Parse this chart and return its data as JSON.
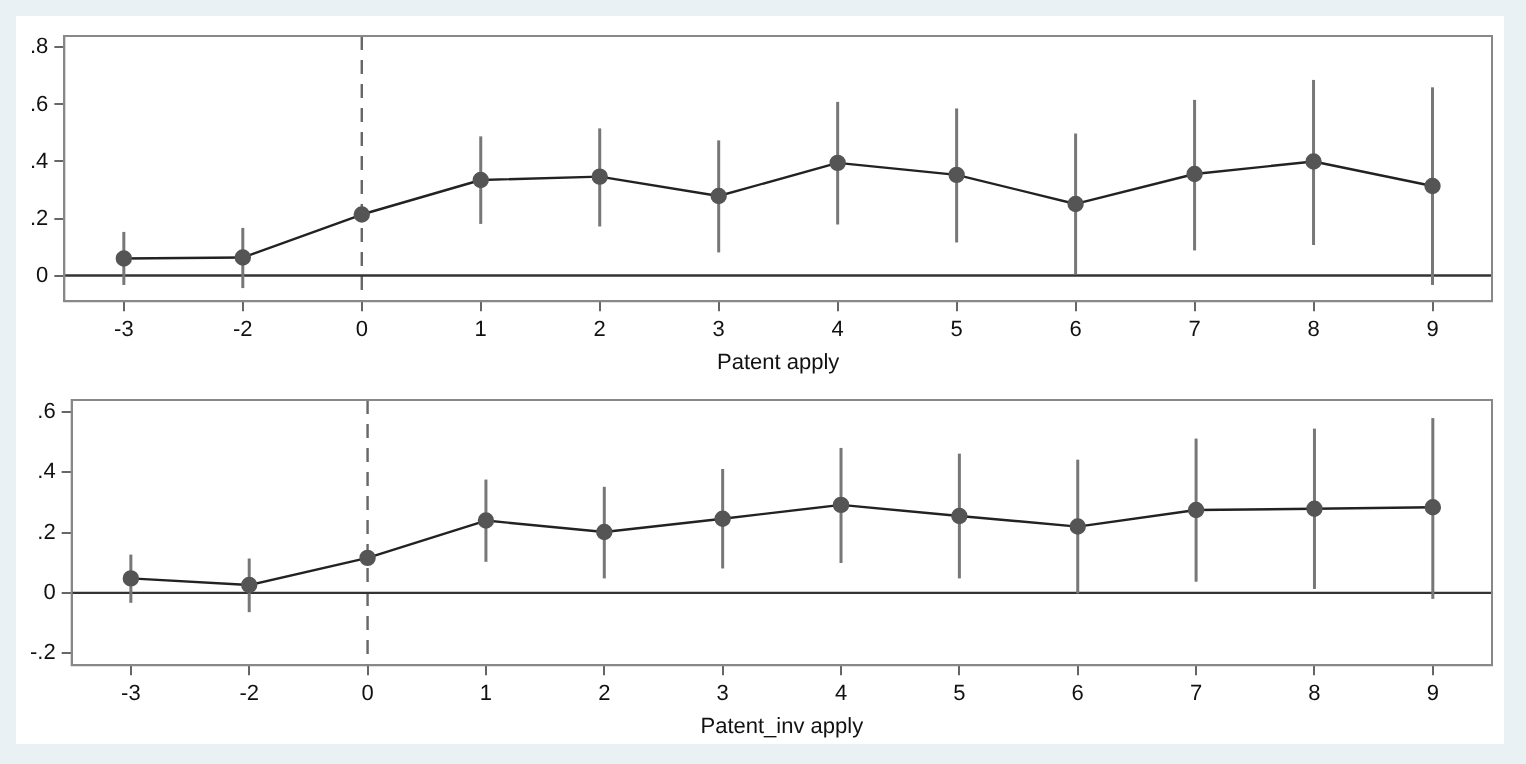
{
  "chart_data": [
    {
      "type": "line",
      "xlabel": "Patent apply",
      "categories": [
        "-3",
        "-2",
        "0",
        "1",
        "2",
        "3",
        "4",
        "5",
        "6",
        "7",
        "8",
        "9"
      ],
      "series": [
        {
          "color": "#555555",
          "values": [
            0.06,
            0.063,
            0.214,
            0.335,
            0.347,
            0.279,
            0.395,
            0.353,
            0.251,
            0.356,
            0.4,
            0.314
          ],
          "errors": [
            [
              -0.033,
              0.153
            ],
            [
              -0.044,
              0.167
            ],
            null,
            [
              0.181,
              0.488
            ],
            [
              0.172,
              0.516
            ],
            [
              0.081,
              0.474
            ],
            [
              0.179,
              0.609
            ],
            [
              0.116,
              0.586
            ],
            [
              0.005,
              0.498
            ],
            [
              0.088,
              0.616
            ],
            [
              0.107,
              0.686
            ],
            [
              -0.033,
              0.66
            ]
          ]
        }
      ],
      "ylim": [
        -0.09,
        0.84
      ],
      "yticks": [
        {
          "value": 0,
          "label": "0"
        },
        {
          "value": 0.2,
          "label": ".2"
        },
        {
          "value": 0.4,
          "label": ".4"
        },
        {
          "value": 0.6,
          "label": ".6"
        },
        {
          "value": 0.8,
          "label": ".8"
        }
      ],
      "ref_lines": [
        {
          "axis": "x",
          "value": "0",
          "line_style": "dashed",
          "color": "#666666"
        },
        {
          "axis": "y",
          "value": 0,
          "line_style": "solid",
          "color": "#333333"
        }
      ],
      "grid": false,
      "legend": false,
      "marker": "circle",
      "line_style": "solid"
    },
    {
      "type": "line",
      "xlabel": "Patent_inv apply",
      "categories": [
        "-3",
        "-2",
        "0",
        "1",
        "2",
        "3",
        "4",
        "5",
        "6",
        "7",
        "8",
        "9"
      ],
      "series": [
        {
          "color": "#555555",
          "values": [
            0.048,
            0.026,
            0.116,
            0.24,
            0.202,
            0.246,
            0.292,
            0.255,
            0.22,
            0.275,
            0.279,
            0.284
          ],
          "errors": [
            [
              -0.033,
              0.127
            ],
            [
              -0.064,
              0.114
            ],
            null,
            [
              0.103,
              0.376
            ],
            [
              0.048,
              0.352
            ],
            [
              0.081,
              0.411
            ],
            [
              0.099,
              0.481
            ],
            [
              0.048,
              0.462
            ],
            [
              -0.002,
              0.442
            ],
            [
              0.037,
              0.512
            ],
            [
              0.013,
              0.545
            ],
            [
              -0.02,
              0.58
            ]
          ]
        }
      ],
      "ylim": [
        -0.24,
        0.64
      ],
      "yticks": [
        {
          "value": -0.2,
          "label": "-.2"
        },
        {
          "value": 0,
          "label": "0"
        },
        {
          "value": 0.2,
          "label": ".2"
        },
        {
          "value": 0.4,
          "label": ".4"
        },
        {
          "value": 0.6,
          "label": ".6"
        }
      ],
      "ref_lines": [
        {
          "axis": "x",
          "value": "0",
          "line_style": "dashed",
          "color": "#666666"
        },
        {
          "axis": "y",
          "value": 0,
          "line_style": "solid",
          "color": "#333333"
        }
      ],
      "grid": false,
      "legend": false,
      "marker": "circle",
      "line_style": "solid"
    }
  ]
}
